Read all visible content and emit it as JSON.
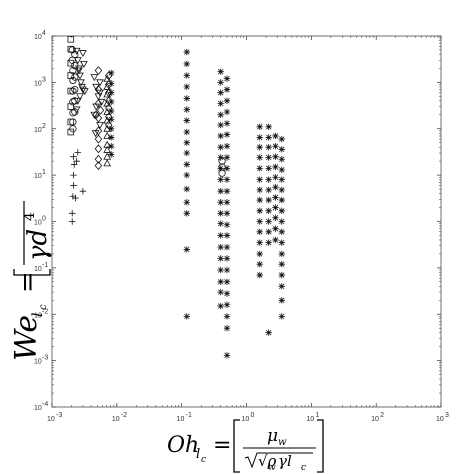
{
  "chart_data": {
    "type": "scatter",
    "title": "",
    "x_scale": "log",
    "y_scale": "log",
    "xlim": [
      0.001,
      1000
    ],
    "ylim": [
      0.0001,
      10000
    ],
    "grid": false,
    "legend": "none",
    "xlabel": {
      "symbol": "Oh",
      "subscript": "l",
      "subsub": "c",
      "equals": "=",
      "numerator": "μ",
      "numerator_sub": "w",
      "denominator": "√ρ",
      "denominator_sub": "w",
      "denominator_rest": "γl",
      "denominator_rest_sub": "c"
    },
    "ylabel": {
      "symbol": "We",
      "subscript": "l",
      "subsub": "c",
      "equals": "=",
      "denominator": "γd",
      "denominator_sup": "4"
    },
    "x_ticks": [
      {
        "value": 0.001,
        "base": "10",
        "exp": "-3"
      },
      {
        "value": 0.01,
        "base": "10",
        "exp": "-2"
      },
      {
        "value": 0.1,
        "base": "10",
        "exp": "-1"
      },
      {
        "value": 1,
        "base": "10",
        "exp": "0"
      },
      {
        "value": 10,
        "base": "10",
        "exp": "1"
      },
      {
        "value": 100,
        "base": "10",
        "exp": "2"
      },
      {
        "value": 1000,
        "base": "10",
        "exp": "3"
      }
    ],
    "y_ticks": [
      {
        "value": 0.0001,
        "base": "10",
        "exp": "-4"
      },
      {
        "value": 0.001,
        "base": "10",
        "exp": "-3"
      },
      {
        "value": 0.01,
        "base": "10",
        "exp": "-2"
      },
      {
        "value": 0.1,
        "base": "10",
        "exp": "-1"
      },
      {
        "value": 1,
        "base": "10",
        "exp": "0"
      },
      {
        "value": 10,
        "base": "10",
        "exp": "1"
      },
      {
        "value": 100,
        "base": "10",
        "exp": "2"
      },
      {
        "value": 1000,
        "base": "10",
        "exp": "3"
      },
      {
        "value": 10000,
        "base": "10",
        "exp": "4"
      }
    ],
    "series": [
      {
        "marker": "square",
        "points": [
          [
            0.00195,
            8500
          ],
          [
            0.00195,
            5200
          ],
          [
            0.00195,
            2600
          ],
          [
            0.00195,
            1400
          ],
          [
            0.00195,
            650
          ],
          [
            0.00195,
            300
          ],
          [
            0.00195,
            140
          ],
          [
            0.00195,
            85
          ]
        ]
      },
      {
        "marker": "circle",
        "points": [
          [
            0.00205,
            5000
          ],
          [
            0.00205,
            3000
          ],
          [
            0.0021,
            1800
          ],
          [
            0.0021,
            1100
          ],
          [
            0.0021,
            650
          ],
          [
            0.0021,
            380
          ],
          [
            0.0021,
            220
          ],
          [
            0.0021,
            140
          ],
          [
            0.0021,
            100
          ],
          [
            0.00225,
            4000
          ],
          [
            0.00225,
            2300
          ],
          [
            0.00225,
            1300
          ],
          [
            0.00225,
            700
          ],
          [
            0.00225,
            400
          ],
          [
            0.00225,
            230
          ]
        ]
      },
      {
        "marker": "triangle-down",
        "points": [
          [
            0.0024,
            4800
          ],
          [
            0.0025,
            3000
          ],
          [
            0.0026,
            2000
          ],
          [
            0.0027,
            1400
          ],
          [
            0.0028,
            1000
          ],
          [
            0.0029,
            800
          ],
          [
            0.003,
            700
          ],
          [
            0.0032,
            650
          ],
          [
            0.0027,
            500
          ],
          [
            0.0025,
            400
          ],
          [
            0.0024,
            260
          ],
          [
            0.0026,
            1800
          ],
          [
            0.0031,
            2500
          ],
          [
            0.003,
            4300
          ]
        ]
      },
      {
        "marker": "plus",
        "points": [
          [
            0.00215,
            25
          ],
          [
            0.00215,
            10
          ],
          [
            0.00215,
            6
          ],
          [
            0.0021,
            3.5
          ],
          [
            0.00205,
            1.5
          ],
          [
            0.00205,
            1
          ],
          [
            0.0022,
            17
          ],
          [
            0.0025,
            31
          ],
          [
            0.0024,
            20
          ],
          [
            0.003,
            4.5
          ],
          [
            0.0023,
            3.2
          ]
        ]
      },
      {
        "marker": "diamond",
        "points": [
          [
            0.0052,
            1800
          ],
          [
            0.0052,
            700
          ],
          [
            0.0052,
            350
          ],
          [
            0.0052,
            170
          ],
          [
            0.0052,
            90
          ],
          [
            0.0052,
            60
          ],
          [
            0.0052,
            37
          ],
          [
            0.0052,
            22
          ],
          [
            0.0052,
            16
          ],
          [
            0.0048,
            200
          ],
          [
            0.0056,
            250
          ]
        ]
      },
      {
        "marker": "triangle-down",
        "points": [
          [
            0.0045,
            1300
          ],
          [
            0.0048,
            800
          ],
          [
            0.0052,
            500
          ],
          [
            0.0058,
            380
          ],
          [
            0.0048,
            300
          ],
          [
            0.0045,
            200
          ],
          [
            0.0055,
            120
          ],
          [
            0.0047,
            80
          ],
          [
            0.0055,
            600
          ],
          [
            0.0055,
            1000
          ]
        ]
      },
      {
        "marker": "triangle-up",
        "points": [
          [
            0.0071,
            1200
          ],
          [
            0.0071,
            800
          ],
          [
            0.0071,
            550
          ],
          [
            0.0071,
            350
          ],
          [
            0.0071,
            230
          ],
          [
            0.0071,
            150
          ],
          [
            0.0071,
            100
          ],
          [
            0.0071,
            70
          ],
          [
            0.0071,
            45
          ],
          [
            0.0071,
            35
          ],
          [
            0.0071,
            25
          ],
          [
            0.0071,
            18
          ]
        ]
      },
      {
        "marker": "diamond",
        "points": [
          [
            0.0075,
            1400
          ],
          [
            0.0075,
            900
          ],
          [
            0.0075,
            600
          ],
          [
            0.0075,
            400
          ],
          [
            0.0075,
            280
          ],
          [
            0.0075,
            180
          ],
          [
            0.0075,
            120
          ]
        ]
      },
      {
        "marker": "asterisk",
        "points": [
          [
            0.0082,
            1600
          ],
          [
            0.0082,
            950
          ],
          [
            0.0082,
            600
          ],
          [
            0.0082,
            380
          ],
          [
            0.0082,
            240
          ],
          [
            0.0082,
            160
          ],
          [
            0.0082,
            100
          ],
          [
            0.0082,
            65
          ],
          [
            0.0082,
            42
          ],
          [
            0.0082,
            28
          ]
        ]
      },
      {
        "marker": "asterisk",
        "points": [
          [
            0.12,
            4500
          ],
          [
            0.12,
            2500
          ],
          [
            0.12,
            1400
          ],
          [
            0.12,
            800
          ],
          [
            0.12,
            450
          ],
          [
            0.12,
            260
          ],
          [
            0.12,
            150
          ],
          [
            0.12,
            85
          ],
          [
            0.12,
            50
          ],
          [
            0.12,
            30
          ],
          [
            0.12,
            17
          ],
          [
            0.12,
            10
          ],
          [
            0.12,
            5
          ],
          [
            0.12,
            2.6
          ],
          [
            0.12,
            1.5
          ],
          [
            0.12,
            0.25
          ],
          [
            0.12,
            0.009
          ]
        ]
      },
      {
        "marker": "asterisk",
        "points": [
          [
            0.4,
            1700
          ],
          [
            0.4,
            1000
          ],
          [
            0.4,
            600
          ],
          [
            0.4,
            350
          ],
          [
            0.4,
            200
          ],
          [
            0.4,
            120
          ],
          [
            0.4,
            70
          ],
          [
            0.4,
            40
          ],
          [
            0.4,
            24
          ],
          [
            0.4,
            14
          ],
          [
            0.4,
            8
          ],
          [
            0.4,
            4.5
          ],
          [
            0.4,
            2.6
          ],
          [
            0.4,
            1.5
          ],
          [
            0.4,
            0.9
          ],
          [
            0.4,
            0.5
          ],
          [
            0.4,
            0.28
          ],
          [
            0.4,
            0.16
          ],
          [
            0.4,
            0.09
          ],
          [
            0.4,
            0.05
          ],
          [
            0.4,
            0.03
          ],
          [
            0.4,
            0.015
          ]
        ]
      },
      {
        "marker": "circle",
        "points": [
          [
            0.42,
            20
          ],
          [
            0.42,
            15
          ],
          [
            0.42,
            11
          ]
        ]
      },
      {
        "marker": "asterisk",
        "points": [
          [
            0.5,
            1200
          ],
          [
            0.5,
            700
          ],
          [
            0.5,
            400
          ],
          [
            0.5,
            230
          ],
          [
            0.5,
            130
          ],
          [
            0.5,
            75
          ],
          [
            0.5,
            42
          ],
          [
            0.5,
            24
          ],
          [
            0.5,
            14
          ],
          [
            0.5,
            8
          ],
          [
            0.5,
            4.5
          ],
          [
            0.5,
            2.6
          ],
          [
            0.5,
            1.5
          ],
          [
            0.5,
            0.85
          ],
          [
            0.5,
            0.5
          ],
          [
            0.5,
            0.28
          ],
          [
            0.5,
            0.16
          ],
          [
            0.5,
            0.09
          ],
          [
            0.5,
            0.05
          ],
          [
            0.5,
            0.028
          ],
          [
            0.5,
            0.016
          ],
          [
            0.5,
            0.009
          ],
          [
            0.5,
            0.005
          ],
          [
            0.5,
            0.0013
          ]
        ]
      },
      {
        "marker": "asterisk",
        "points": [
          [
            1.6,
            110
          ],
          [
            1.6,
            65
          ],
          [
            1.6,
            40
          ],
          [
            1.6,
            24
          ],
          [
            1.6,
            14
          ],
          [
            1.6,
            8
          ],
          [
            1.6,
            4.8
          ],
          [
            1.6,
            2.9
          ],
          [
            1.6,
            1.7
          ],
          [
            1.6,
            1
          ],
          [
            1.6,
            0.6
          ],
          [
            1.6,
            0.35
          ],
          [
            1.6,
            0.2
          ],
          [
            1.6,
            0.12
          ],
          [
            1.6,
            0.07
          ]
        ]
      },
      {
        "marker": "asterisk",
        "points": [
          [
            2.2,
            110
          ],
          [
            2.2,
            65
          ],
          [
            2.2,
            40
          ],
          [
            2.2,
            24
          ],
          [
            2.2,
            14
          ],
          [
            2.2,
            8
          ],
          [
            2.2,
            4.8
          ],
          [
            2.2,
            2.9
          ],
          [
            2.2,
            1.7
          ],
          [
            2.2,
            1
          ],
          [
            2.2,
            0.6
          ],
          [
            2.2,
            0.35
          ],
          [
            2.2,
            0.004
          ]
        ]
      },
      {
        "marker": "asterisk",
        "points": [
          [
            2.8,
            70
          ],
          [
            2.8,
            42
          ],
          [
            2.8,
            25
          ],
          [
            2.8,
            15
          ],
          [
            2.8,
            9
          ],
          [
            2.8,
            5.5
          ],
          [
            2.8,
            3.3
          ],
          [
            2.8,
            2
          ],
          [
            2.8,
            1.2
          ],
          [
            2.8,
            0.7
          ],
          [
            2.8,
            0.4
          ]
        ]
      },
      {
        "marker": "asterisk",
        "points": [
          [
            3.5,
            60
          ],
          [
            3.5,
            36
          ],
          [
            3.5,
            22
          ],
          [
            3.5,
            13
          ],
          [
            3.5,
            8
          ],
          [
            3.5,
            4.8
          ],
          [
            3.5,
            2.9
          ],
          [
            3.5,
            1.7
          ],
          [
            3.5,
            1
          ],
          [
            3.5,
            0.6
          ],
          [
            3.5,
            0.35
          ],
          [
            3.5,
            0.2
          ],
          [
            3.5,
            0.12
          ],
          [
            3.5,
            0.07
          ],
          [
            3.5,
            0.04
          ],
          [
            3.5,
            0.02
          ],
          [
            3.5,
            0.009
          ]
        ]
      }
    ]
  }
}
